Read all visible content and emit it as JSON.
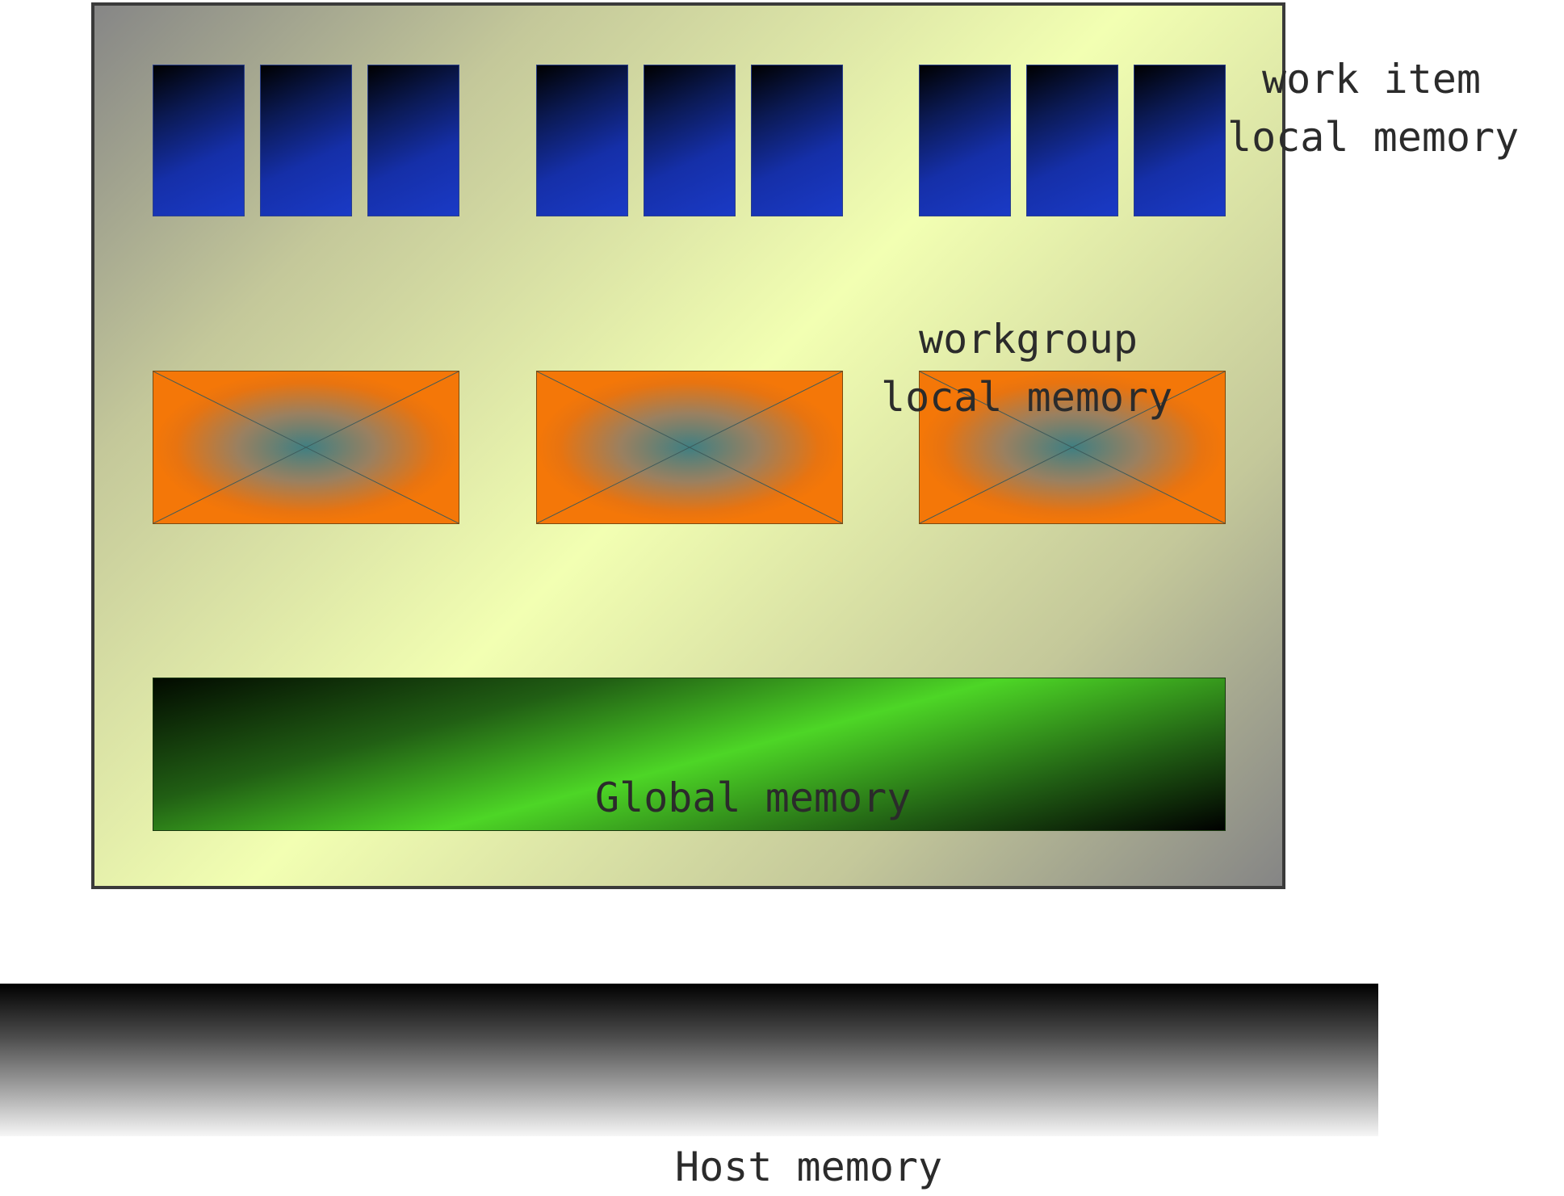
{
  "labels": {
    "work_item_line1": "work item",
    "work_item_line2": "local memory",
    "workgroup_line1": "workgroup",
    "workgroup_line2": "local memory",
    "global": "Global memory",
    "host": "Host memory"
  },
  "structure": {
    "workgroup_count": 3,
    "work_items_per_workgroup": 3
  },
  "colors": {
    "work_item_memory": "#1a3ac6",
    "workgroup_memory": "#f47708",
    "global_memory": "#4dd626",
    "device_background": "#f2ffb2",
    "host_memory": "#000000"
  }
}
